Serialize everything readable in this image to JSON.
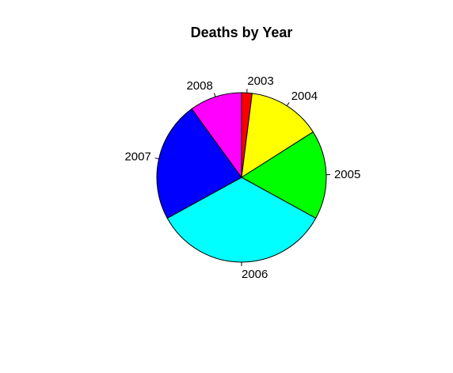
{
  "chart_data": {
    "type": "pie",
    "title": "Deaths by Year",
    "categories": [
      "2003",
      "2004",
      "2005",
      "2006",
      "2007",
      "2008"
    ],
    "values": [
      2,
      14,
      17,
      34,
      23,
      10
    ],
    "colors": [
      "#ff0000",
      "#ffff00",
      "#00ff00",
      "#00ffff",
      "#0000ff",
      "#ff00ff"
    ],
    "start": "12 o'clock",
    "direction": "clockwise",
    "legend": "none"
  }
}
